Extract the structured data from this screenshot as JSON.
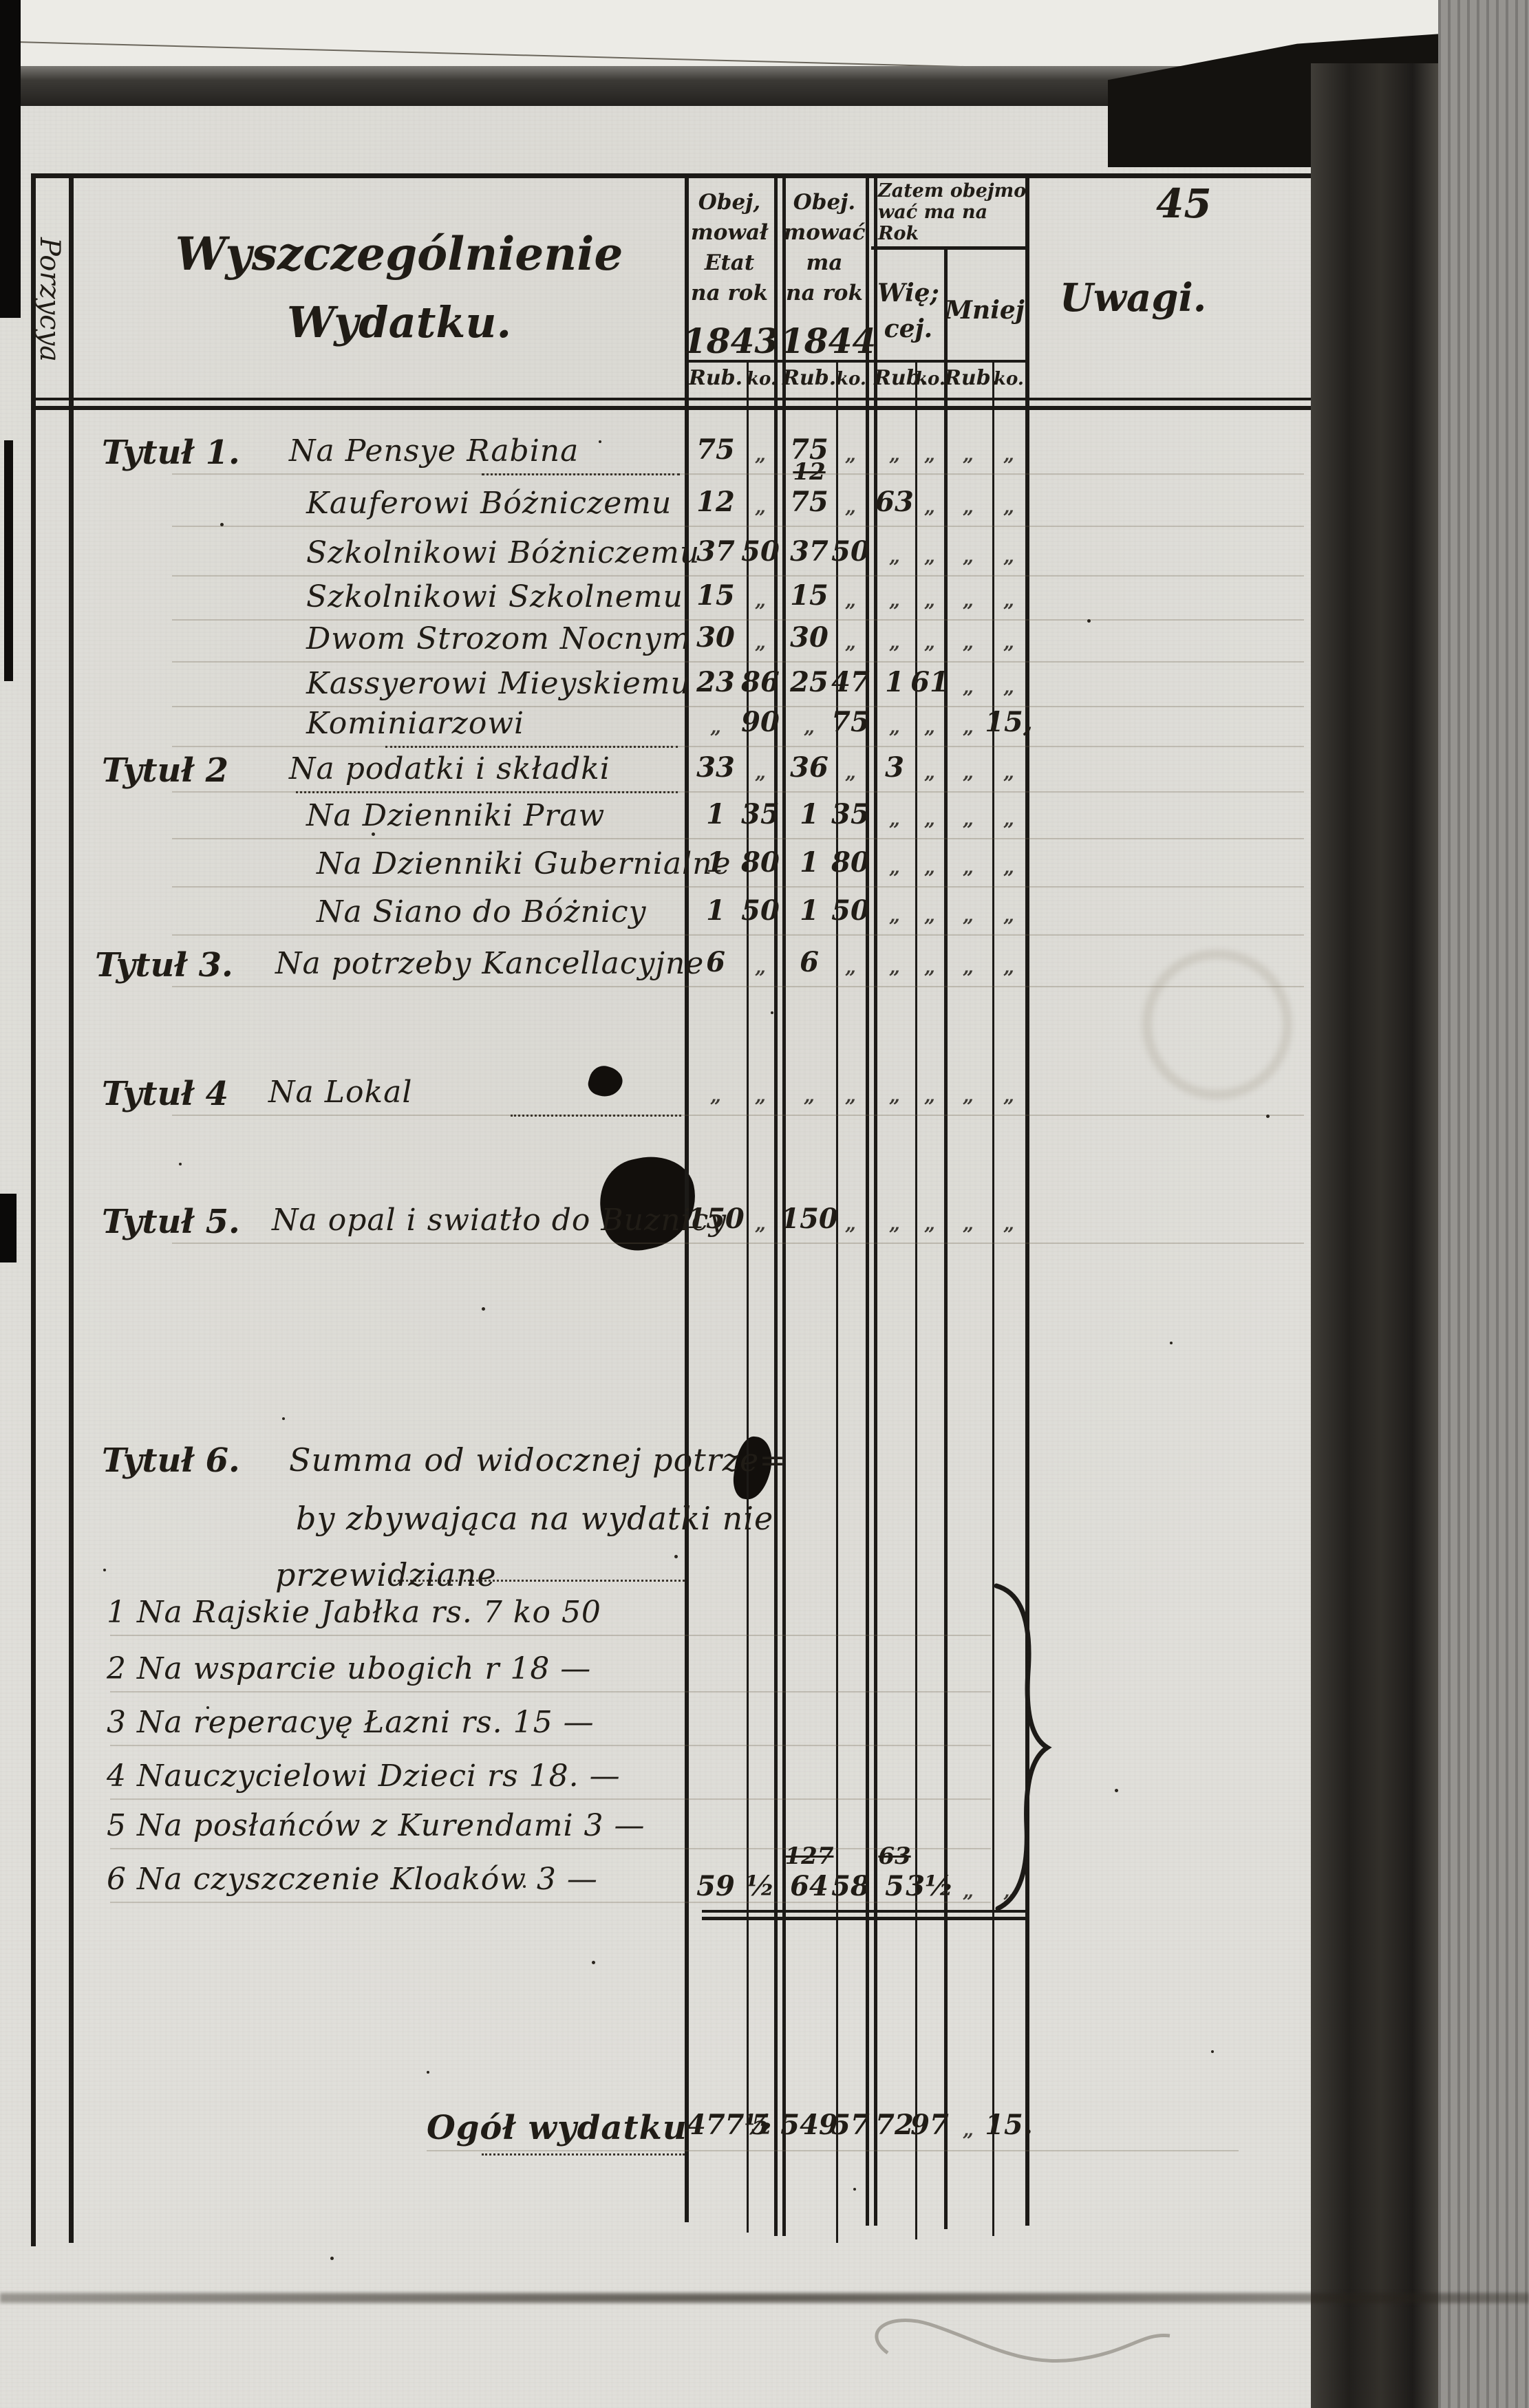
{
  "colors": {
    "ink": "#201c16",
    "paper": "#e0dfda",
    "band_dark": "#23211e"
  },
  "page": {
    "number": "45"
  },
  "header": {
    "porzycya": "Porzycya",
    "title_line1": "Wyszczególnienie",
    "title_line2": "Wydatku.",
    "col_1843": {
      "l1": "Obej,",
      "l2": "mował",
      "l3": "Etat",
      "l4": "na rok",
      "year": "1843"
    },
    "col_1844": {
      "l1": "Obej.",
      "l2": "mować",
      "l3": "ma",
      "l4": "na rok",
      "year": "1844"
    },
    "zatem_l1": "Zatem obejmo",
    "zatem_l2": "wać ma na",
    "zatem_l3": "Rok",
    "wiecej_l1": "Wię;",
    "wiecej_l2": "cej.",
    "mniej": "Mniej",
    "uwagi": "Uwagi.",
    "rub": "Rub.",
    "ko": "ko."
  },
  "rows": [
    {
      "tytul": "Tytuł 1.",
      "label": "Na Pensye Rabina",
      "v": [
        "75",
        "„",
        "75",
        "„",
        "„",
        "„",
        "„",
        "„"
      ]
    },
    {
      "tytul": "",
      "label": "Kauferowi Bóżniczemu",
      "v": [
        "12",
        "„",
        "75",
        "„",
        "63",
        "„",
        "„",
        "„"
      ],
      "sup": {
        "2": "12"
      }
    },
    {
      "tytul": "",
      "label": "Szkolnikowi Bóżniczemu",
      "v": [
        "37",
        "50",
        "37",
        "50",
        "„",
        "„",
        "„",
        "„"
      ]
    },
    {
      "tytul": "",
      "label": "Szkolnikowi Szkolnemu",
      "v": [
        "15",
        "„",
        "15",
        "„",
        "„",
        "„",
        "„",
        "„"
      ]
    },
    {
      "tytul": "",
      "label": "Dwom Strozom Nocnym",
      "v": [
        "30",
        "„",
        "30",
        "„",
        "„",
        "„",
        "„",
        "„"
      ]
    },
    {
      "tytul": "",
      "label": "Kassyerowi Mieyskiemu",
      "v": [
        "23",
        "86",
        "25",
        "47",
        "1",
        "61",
        "„",
        "„"
      ]
    },
    {
      "tytul": "",
      "label": "Kominiarzowi",
      "v": [
        "„",
        "90",
        "„",
        "75",
        "„",
        "„",
        "„",
        "15,"
      ]
    },
    {
      "tytul": "Tytuł 2",
      "label": "Na podatki i składki",
      "v": [
        "33",
        "„",
        "36",
        "„",
        "3",
        "„",
        "„",
        "„"
      ]
    },
    {
      "tytul": "",
      "label": "Na Dzienniki Praw",
      "v": [
        "1",
        "35",
        "1",
        "35",
        "„",
        "„",
        "„",
        "„"
      ]
    },
    {
      "tytul": "",
      "label": "Na Dzienniki Gubernialne",
      "v": [
        "1",
        "80",
        "1",
        "80",
        "„",
        "„",
        "„",
        "„"
      ]
    },
    {
      "tytul": "",
      "label": "Na Siano do Bóżnicy",
      "v": [
        "1",
        "50",
        "1",
        "50",
        "„",
        "„",
        "„",
        "„"
      ]
    },
    {
      "tytul": "Tytuł 3.",
      "label": "Na potrzeby Kancellacyjne",
      "v": [
        "6",
        "„",
        "6",
        "„",
        "„",
        "„",
        "„",
        "„"
      ]
    },
    {
      "tytul": "Tytuł 4",
      "label": "Na Lokal",
      "v": [
        "„",
        "„",
        "„",
        "„",
        "„",
        "„",
        "„",
        "„"
      ]
    },
    {
      "tytul": "Tytuł 5.",
      "label": "Na opal i swiatło do Buznicy",
      "v": [
        "150",
        "„",
        "150",
        "„",
        "„",
        "„",
        "„",
        "„"
      ]
    }
  ],
  "tytul6": {
    "tytul": "Tytuł 6.",
    "line1": "Summa od widocznej potrze=",
    "line2": "by zbywająca na wydatki nie",
    "line3": "przewidziane",
    "items": [
      "1  Na Rajskie Jabłka rs. 7 ko 50",
      "2  Na wsparcie ubogich r 18 —",
      "3  Na reperacyę Łazni rs. 15 —",
      "4  Nauczycielowi Dzieci rs 18. —",
      "5  Na posłańców z Kurendami 3 —",
      "6  Na czyszczenie Kloaków 3 —"
    ],
    "totals": {
      "v": [
        "59",
        "½",
        "64",
        "58",
        "5",
        "3½",
        "„",
        "„"
      ],
      "sup": {
        "2": "127",
        "4": "63"
      }
    }
  },
  "ogol": {
    "label": "Ogół wydatku",
    "v": [
      "477½",
      "5",
      "549",
      "57",
      "72",
      "97",
      "„",
      "15."
    ]
  }
}
